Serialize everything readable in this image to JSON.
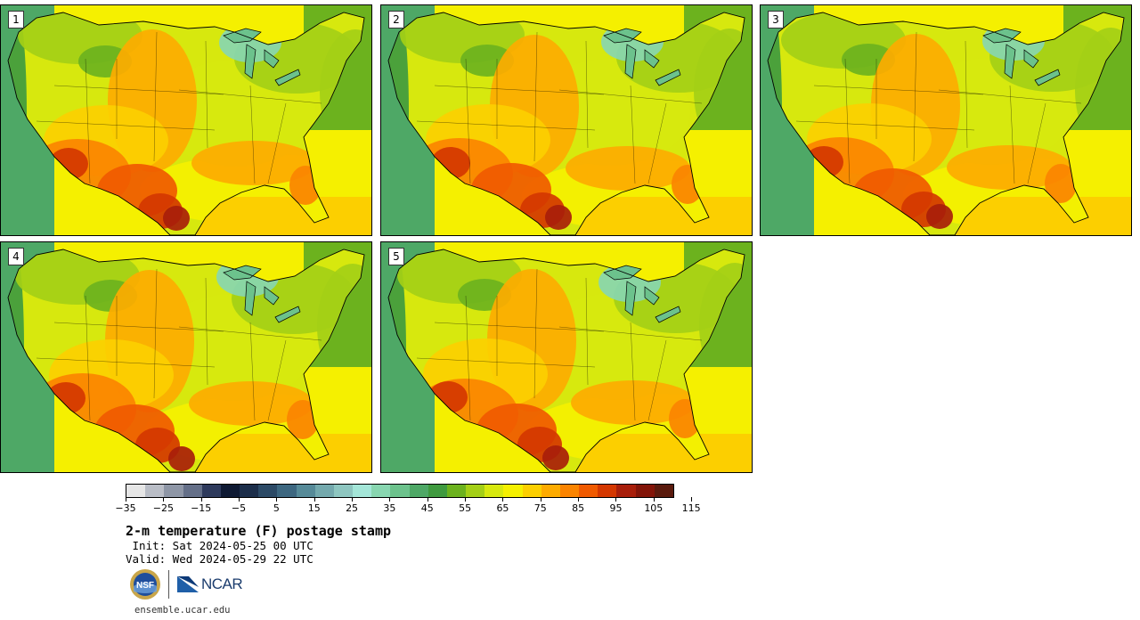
{
  "panels": [
    {
      "label": "1",
      "variant": 0
    },
    {
      "label": "2",
      "variant": 1
    },
    {
      "label": "3",
      "variant": 2
    },
    {
      "label": "4",
      "variant": 3
    },
    {
      "label": "5",
      "variant": 4
    }
  ],
  "colorbar": {
    "colors": [
      "#e6e6e6",
      "#b9bdc6",
      "#8e96a6",
      "#646f88",
      "#2e3a5c",
      "#0f1a33",
      "#1c2e4a",
      "#2c4a66",
      "#3d6780",
      "#568a98",
      "#74a9ad",
      "#8ec6c0",
      "#a4e6d8",
      "#88d6b0",
      "#6cc28c",
      "#4ea866",
      "#3f9a3f",
      "#6cb21e",
      "#a4cf16",
      "#d7e80e",
      "#f5f000",
      "#fccf00",
      "#fdab00",
      "#fb8400",
      "#f05a00",
      "#d43700",
      "#a81e0a",
      "#821408",
      "#5a1a0d"
    ],
    "ticks": [
      "−35",
      "−25",
      "−15",
      "−5",
      "5",
      "15",
      "25",
      "35",
      "45",
      "55",
      "65",
      "75",
      "85",
      "95",
      "105",
      "115"
    ]
  },
  "title": "2-m temperature (F) postage stamp",
  "init": " Init: Sat 2024-05-25 00 UTC",
  "valid": "Valid: Wed 2024-05-29 22 UTC",
  "logos": {
    "nsf": "NSF",
    "ncar": "NCAR"
  },
  "site": "ensemble.ucar.edu"
}
